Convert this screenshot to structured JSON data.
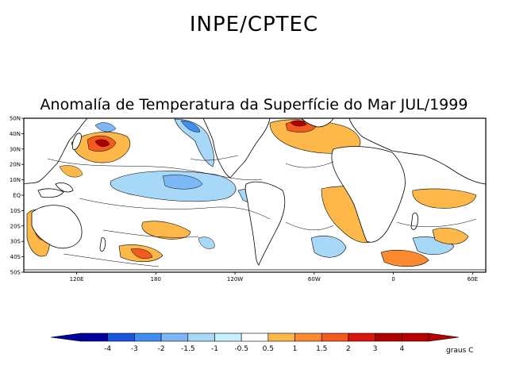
{
  "header": {
    "title": "INPE/CPTEC"
  },
  "map": {
    "title": "Anomalía de Temperatura da Superfície do Mar JUL/1999",
    "lat_labels": [
      "50N",
      "40N",
      "30N",
      "20N",
      "10N",
      "EQ",
      "10S",
      "20S",
      "30S",
      "40S",
      "50S"
    ],
    "lon_labels": [
      "120E",
      "180",
      "120W",
      "60W",
      "0",
      "60E"
    ]
  },
  "colorbar": {
    "unit": "graus C",
    "labels": [
      "-4",
      "-3",
      "-2",
      "-1.5",
      "-1",
      "-0.5",
      "0.5",
      "1",
      "1.5",
      "2",
      "3",
      "4"
    ],
    "colors": [
      "#0000a0",
      "#1a55e0",
      "#3f8ef0",
      "#7cb8f5",
      "#a8d8f8",
      "#c6f0fa",
      "#ffffff",
      "#fdb849",
      "#fb8a30",
      "#f25a1e",
      "#d8160c",
      "#b00000",
      "#b80000"
    ]
  },
  "colors": {
    "land": "#ffffff",
    "contour": "#000000",
    "frame": "#000000"
  }
}
